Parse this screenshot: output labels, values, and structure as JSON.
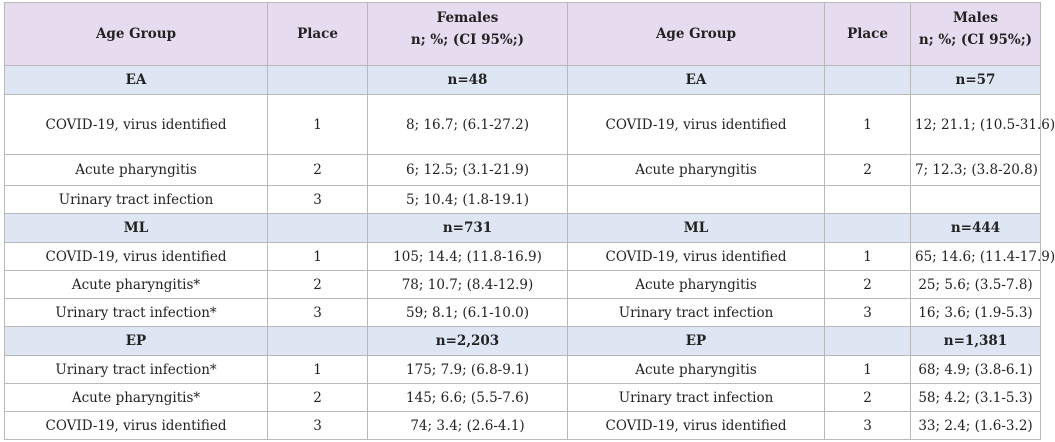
{
  "header": {
    "age_group_f": "Age Group",
    "place_f": "Place",
    "females_title": "Females",
    "females_sub": "n; %; (CI 95%;)",
    "age_group_m": "Age Group",
    "place_m": "Place",
    "males_title": "Males",
    "males_sub": "n; %; (CI 95%;)"
  },
  "groups": [
    {
      "label_f": "EA",
      "n_f": "n=48",
      "label_m": "EA",
      "n_m": "n=57",
      "rows": [
        {
          "f_name": "COVID-19, virus identified",
          "f_place": "1",
          "f_val": "8; 16.7; (6.1-27.2)",
          "m_name": "COVID-19, virus identified",
          "m_place": "1",
          "m_val": "12; 21.1; (10.5-31.6)"
        },
        {
          "f_name": "Acute pharyngitis",
          "f_place": "2",
          "f_val": "6; 12.5; (3.1-21.9)",
          "m_name": "Acute pharyngitis",
          "m_place": "2",
          "m_val": "7; 12.3; (3.8-20.8)"
        },
        {
          "f_name": "Urinary tract infection",
          "f_place": "3",
          "f_val": "5; 10.4; (1.8-19.1)",
          "m_name": "",
          "m_place": "",
          "m_val": ""
        }
      ]
    },
    {
      "label_f": "ML",
      "n_f": "n=731",
      "label_m": "ML",
      "n_m": "n=444",
      "rows": [
        {
          "f_name": "COVID-19, virus identified",
          "f_place": "1",
          "f_val": "105; 14.4; (11.8-16.9)",
          "m_name": "COVID-19, virus identified",
          "m_place": "1",
          "m_val": "65; 14.6; (11.4-17.9)"
        },
        {
          "f_name": "Acute pharyngitis*",
          "f_place": "2",
          "f_val": "78; 10.7; (8.4-12.9)",
          "m_name": "Acute pharyngitis",
          "m_place": "2",
          "m_val": "25; 5.6; (3.5-7.8)"
        },
        {
          "f_name": "Urinary tract infection*",
          "f_place": "3",
          "f_val": "59; 8.1; (6.1-10.0)",
          "m_name": "Urinary tract infection",
          "m_place": "3",
          "m_val": "16; 3.6; (1.9-5.3)"
        }
      ]
    },
    {
      "label_f": "EP",
      "n_f": "n=2,203",
      "label_m": "EP",
      "n_m": "n=1,381",
      "rows": [
        {
          "f_name": "Urinary tract infection*",
          "f_place": "1",
          "f_val": "175; 7.9; (6.8-9.1)",
          "m_name": "Acute pharyngitis",
          "m_place": "1",
          "m_val": "68; 4.9; (3.8-6.1)"
        },
        {
          "f_name": "Acute pharyngitis*",
          "f_place": "2",
          "f_val": "145; 6.6; (5.5-7.6)",
          "m_name": "Urinary tract infection",
          "m_place": "2",
          "m_val": "58; 4.2; (3.1-5.3)"
        },
        {
          "f_name": "COVID-19, virus identified",
          "f_place": "3",
          "f_val": "74; 3.4; (2.6-4.1)",
          "m_name": "COVID-19, virus identified",
          "m_place": "3",
          "m_val": "33; 2.4; (1.6-3.2)"
        }
      ]
    }
  ]
}
